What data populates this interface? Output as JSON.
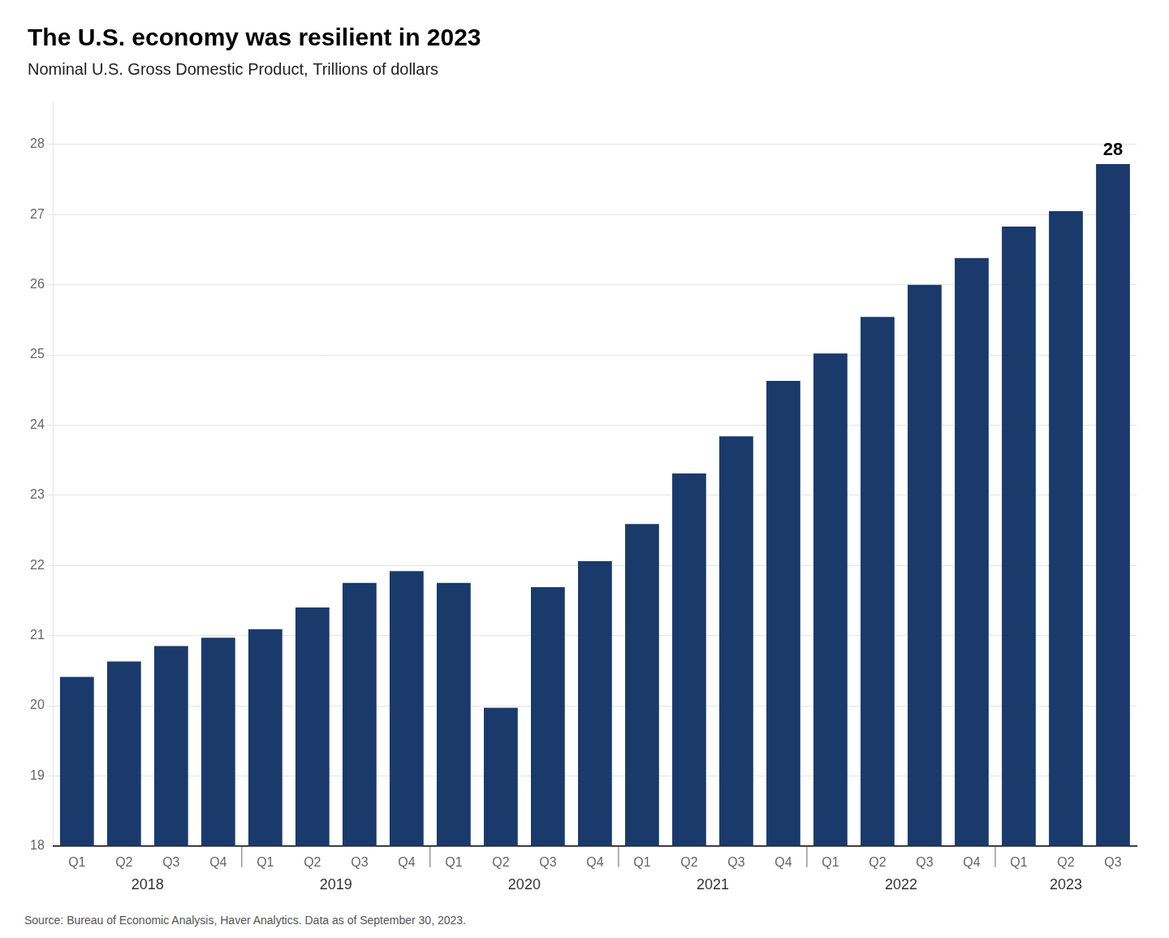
{
  "chart_data": {
    "type": "bar",
    "title": "The U.S. economy was resilient in 2023",
    "subtitle": "Nominal U.S. Gross Domestic Product, Trillions of dollars",
    "source": "Source: Bureau of Economic Analysis, Haver Analytics. Data as of September 30, 2023.",
    "categories": [
      "Q1",
      "Q2",
      "Q3",
      "Q4",
      "Q1",
      "Q2",
      "Q3",
      "Q4",
      "Q1",
      "Q2",
      "Q3",
      "Q4",
      "Q1",
      "Q2",
      "Q3",
      "Q4",
      "Q1",
      "Q2",
      "Q3",
      "Q4",
      "Q1",
      "Q2",
      "Q3"
    ],
    "x_groups": [
      "2018",
      "2018",
      "2018",
      "2018",
      "2019",
      "2019",
      "2019",
      "2019",
      "2020",
      "2020",
      "2020",
      "2020",
      "2021",
      "2021",
      "2021",
      "2021",
      "2022",
      "2022",
      "2022",
      "2022",
      "2023",
      "2023",
      "2023"
    ],
    "values": [
      20.41,
      20.63,
      20.85,
      20.97,
      21.09,
      21.4,
      21.75,
      21.92,
      21.75,
      19.97,
      21.69,
      22.06,
      22.59,
      23.31,
      23.84,
      24.63,
      25.02,
      25.54,
      26.0,
      26.38,
      26.83,
      27.05,
      27.72
    ],
    "color": "#1a3a6b",
    "ylim": [
      18,
      28.6
    ],
    "yticks": [
      18,
      19,
      20,
      21,
      22,
      23,
      24,
      25,
      26,
      27,
      28
    ],
    "grid": true,
    "annotations": [
      {
        "text": "28",
        "index": 22
      }
    ]
  }
}
